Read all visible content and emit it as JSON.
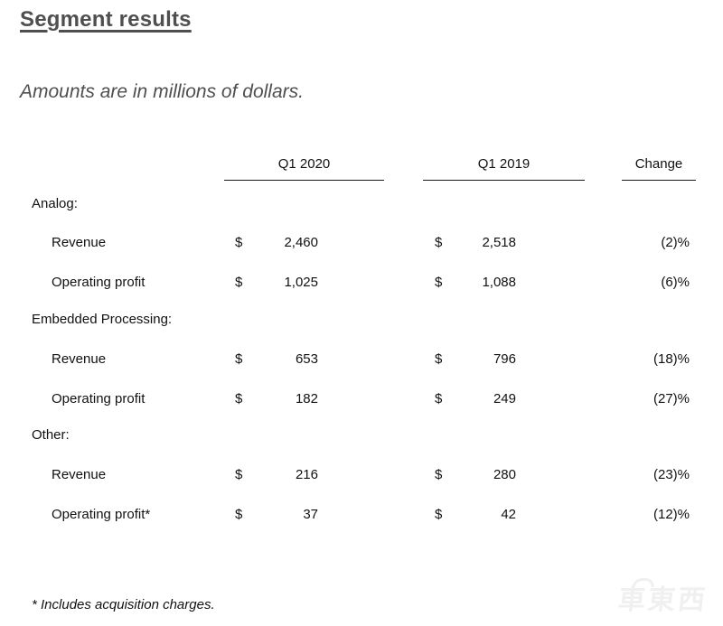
{
  "page": {
    "title": "Segment results",
    "subtitle": "Amounts are in millions of dollars.",
    "footnote": "* Includes acquisition charges.",
    "watermark": "車東西"
  },
  "table": {
    "columns": [
      "Q1 2020",
      "Q1 2019",
      "Change"
    ],
    "currency_symbol": "$",
    "sections": [
      {
        "label": "Analog:",
        "rows": [
          {
            "label": "Revenue",
            "q1_2020": "2,460",
            "q1_2019": "2,518",
            "change": "(2)%"
          },
          {
            "label": "Operating profit",
            "q1_2020": "1,025",
            "q1_2019": "1,088",
            "change": "(6)%"
          }
        ]
      },
      {
        "label": "Embedded Processing:",
        "rows": [
          {
            "label": "Revenue",
            "q1_2020": "653",
            "q1_2019": "796",
            "change": "(18)%"
          },
          {
            "label": "Operating profit",
            "q1_2020": "182",
            "q1_2019": "249",
            "change": "(27)%"
          }
        ]
      },
      {
        "label": "Other:",
        "rows": [
          {
            "label": "Revenue",
            "q1_2020": "216",
            "q1_2019": "280",
            "change": "(23)%"
          },
          {
            "label": "Operating profit*",
            "q1_2020": "37",
            "q1_2019": "42",
            "change": "(12)%"
          }
        ]
      }
    ]
  }
}
